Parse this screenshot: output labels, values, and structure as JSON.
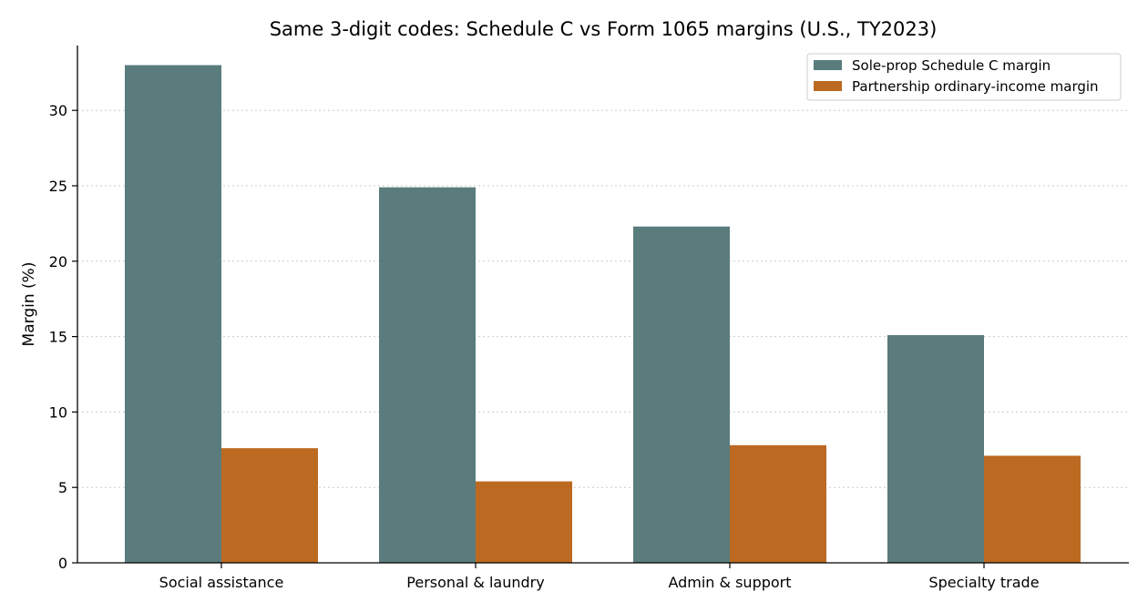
{
  "chart_data": {
    "type": "bar",
    "title": "Same 3-digit codes: Schedule C vs Form 1065 margins (U.S., TY2023)",
    "xlabel": "",
    "ylabel": "Margin (%)",
    "categories": [
      "Social assistance",
      "Personal & laundry",
      "Admin & support",
      "Specialty trade"
    ],
    "series": [
      {
        "name": "Sole-prop Schedule C margin",
        "values": [
          33.0,
          24.9,
          22.3,
          15.1
        ],
        "color": "#5a7c7d"
      },
      {
        "name": "Partnership ordinary-income margin",
        "values": [
          7.6,
          5.4,
          7.8,
          7.1
        ],
        "color": "#bc6a21"
      }
    ],
    "ylim": [
      0,
      34.3
    ],
    "yticks": [
      0,
      5,
      10,
      15,
      20,
      25,
      30
    ],
    "grid": "horizontal-dotted",
    "legend_position": "top-right"
  }
}
